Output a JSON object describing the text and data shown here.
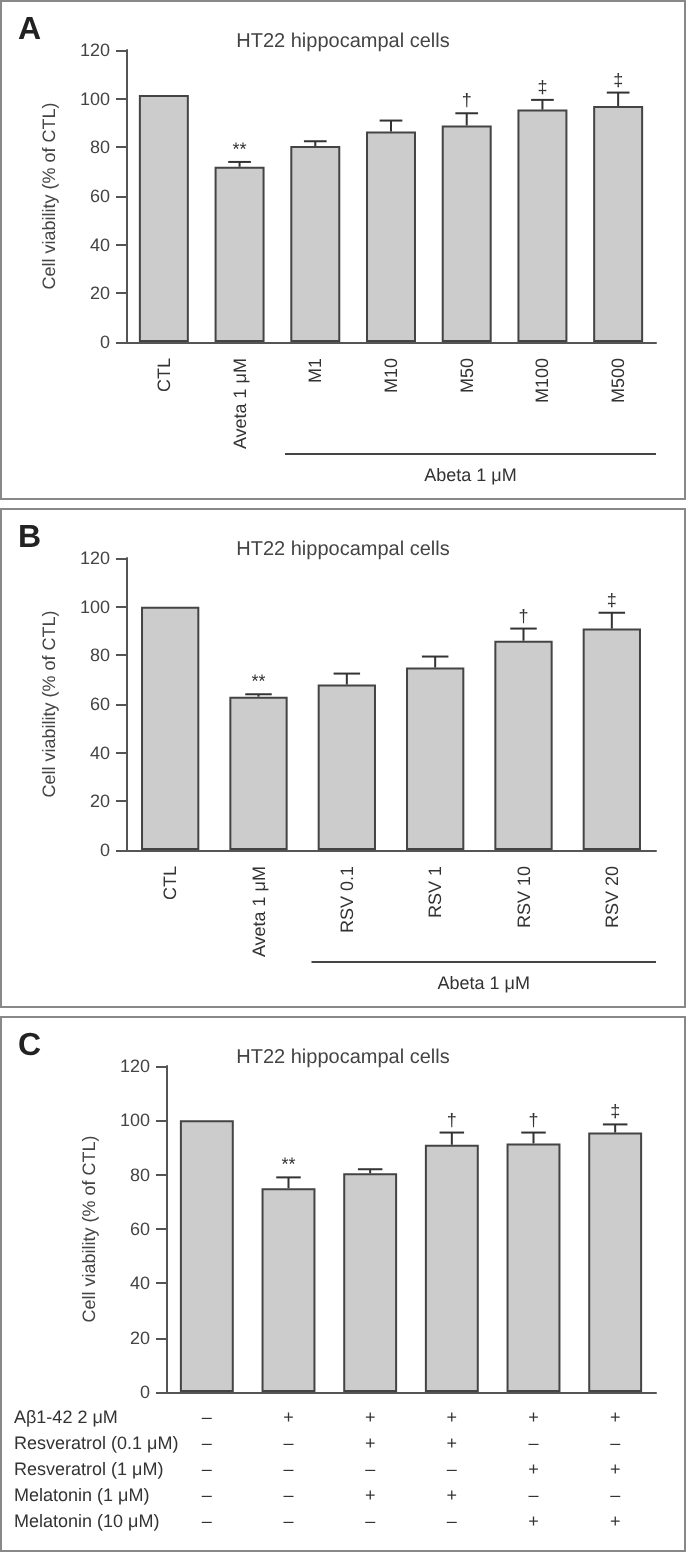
{
  "chart_data": [
    {
      "type": "bar",
      "title": "HT22 hippocampal cells",
      "ylabel": "Cell viability (% of CTL)",
      "xlabel": "Abeta 1 μM",
      "annotations": [
        "A"
      ],
      "categories": [
        "CTL",
        "Aveta 1 μM",
        "M1",
        "M10",
        "M50",
        "M100",
        "M500"
      ],
      "values": [
        101.5,
        72,
        80.5,
        86.5,
        89,
        95.5,
        97
      ],
      "errors": [
        null,
        [
          72,
          74
        ],
        [
          80.5,
          82.5
        ],
        [
          86.5,
          91
        ],
        [
          89,
          94
        ],
        [
          95.5,
          99.5
        ],
        [
          97,
          102.5
        ]
      ],
      "value_labels": [
        null,
        "**",
        null,
        null,
        "†",
        "‡",
        "‡"
      ],
      "color": "#cccccc",
      "ylim": [
        0,
        120
      ],
      "yticks": [
        0,
        20,
        40,
        60,
        80,
        100,
        120
      ],
      "grid": false
    },
    {
      "type": "bar",
      "title": "HT22 hippocampal cells",
      "ylabel": "Cell viability (% of CTL)",
      "xlabel": "Abeta 1 μM",
      "annotations": [
        "B"
      ],
      "categories": [
        "CTL",
        "Aveta 1 μM",
        "RSV 0.1",
        "RSV 1",
        "RSV 10",
        "RSV 20"
      ],
      "values": [
        100,
        63,
        68,
        75,
        86,
        91
      ],
      "errors": [
        null,
        [
          63,
          64
        ],
        [
          68,
          72.5
        ],
        [
          75,
          79.5
        ],
        [
          86,
          91
        ],
        [
          91,
          97.5
        ]
      ],
      "value_labels": [
        null,
        "**",
        null,
        null,
        "†",
        "‡"
      ],
      "color": "#cccccc",
      "ylim": [
        0,
        120
      ],
      "yticks": [
        0,
        20,
        40,
        60,
        80,
        100,
        120
      ],
      "grid": false
    },
    {
      "type": "bar",
      "title": "HT22 hippocampal cells",
      "ylabel": "Cell viability (% of CTL)",
      "annotations": [
        "C",
        "Aβ1-42 2 μM",
        "Resveratrol (0.1 μM)",
        "Resveratrol (1 μM)",
        "Melatonin (1 μM)",
        "Melatonin (10 μM)"
      ],
      "categories": [
        "–\n–\n–\n–\n–",
        "+\n–\n–\n–\n–",
        "+\n+\n–\n+\n–",
        "+\n+\n–\n+\n–",
        "+\n–\n+\n–\n+",
        "+\n–\n+\n–\n+"
      ],
      "values": [
        100,
        75,
        80.5,
        91,
        91.5,
        95.5
      ],
      "errors": [
        null,
        [
          75,
          79
        ],
        [
          80.5,
          82
        ],
        [
          91,
          95.5
        ],
        [
          91.5,
          95.5
        ],
        [
          95.5,
          98.5
        ]
      ],
      "value_labels": [
        null,
        "**",
        null,
        "†",
        "†",
        "‡"
      ],
      "color": "#cccccc",
      "ylim": [
        0,
        120
      ],
      "yticks": [
        0,
        20,
        40,
        60,
        80,
        100,
        120
      ],
      "grid": false
    }
  ]
}
